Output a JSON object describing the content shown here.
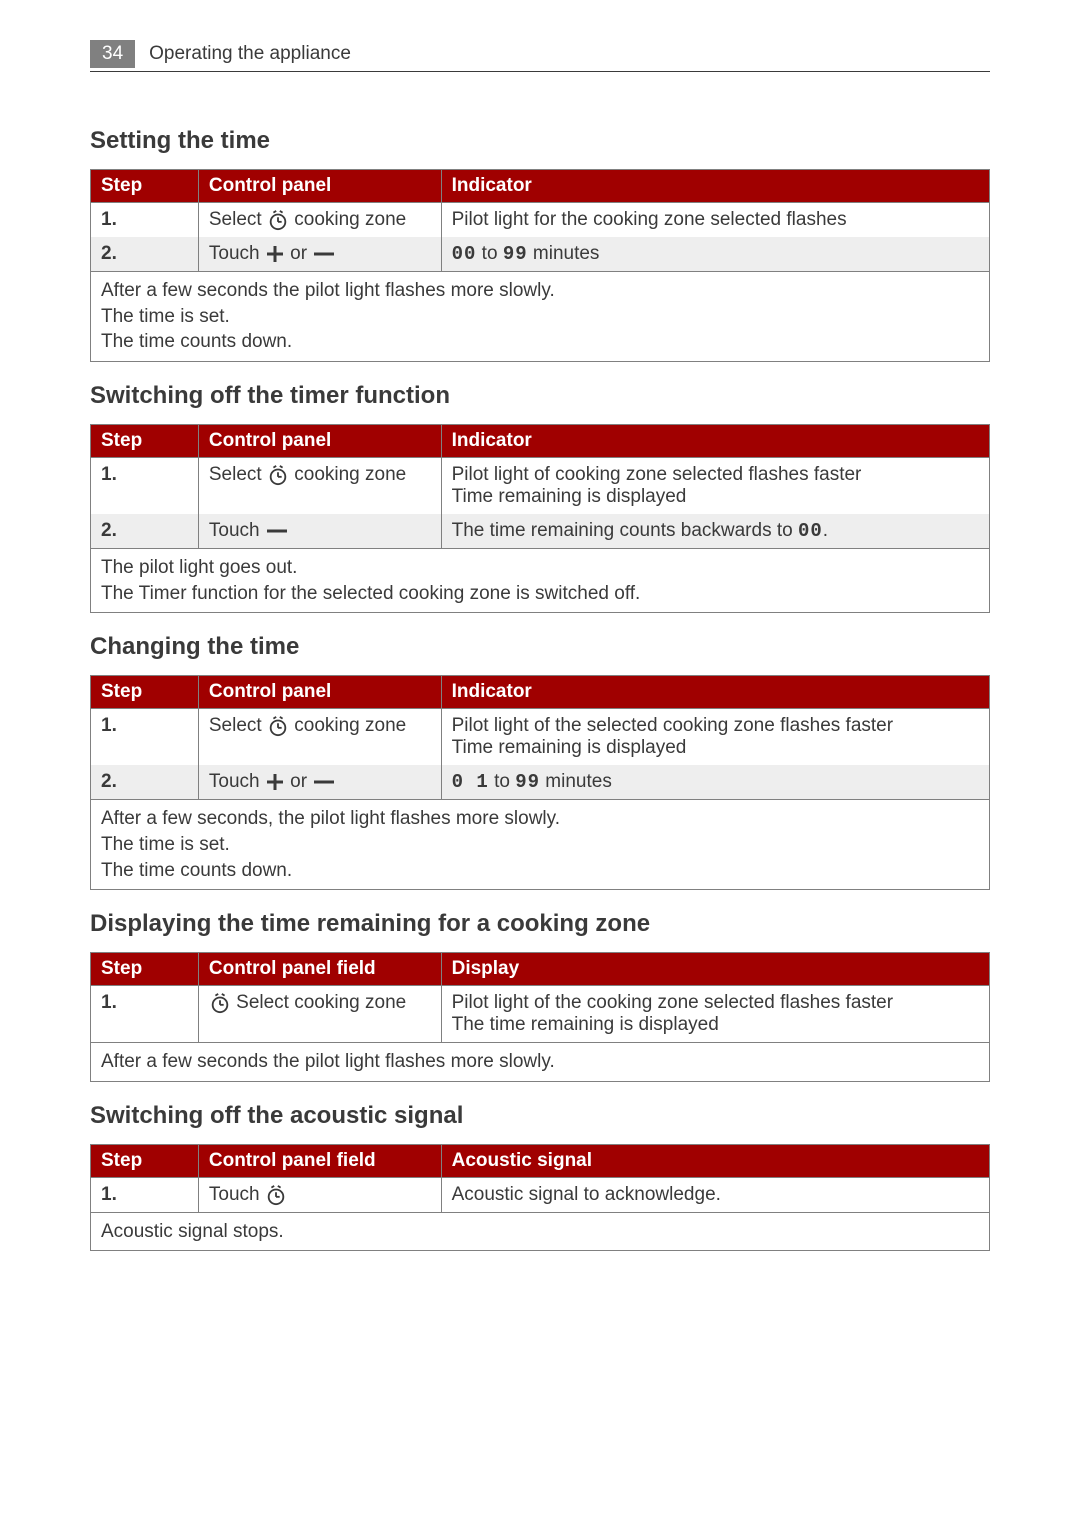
{
  "header": {
    "page_number": "34",
    "title": "Operating the appliance"
  },
  "colors": {
    "header_red": "#a00000",
    "grey_box": "#808080",
    "text": "#3a3a3a",
    "alt_row": "#eeeeee",
    "white": "#ffffff",
    "border": "#808080"
  },
  "sections": [
    {
      "heading": "Setting the time",
      "columns": [
        "Step",
        "Control panel",
        "Indicator"
      ],
      "rows": [
        {
          "step": "1.",
          "panel_pre": "Select ",
          "panel_icon": "clock",
          "panel_post": "  cooking zone",
          "indicator": "Pilot light for the cooking zone selected flashes"
        },
        {
          "step": "2.",
          "panel_pre": "Touch ",
          "panel_icon": "plus",
          "panel_mid": " or ",
          "panel_icon2": "minus",
          "panel_post": "",
          "indicator_digit1": "00",
          "indicator_mid": " to ",
          "indicator_digit2": "99",
          "indicator_post": "  minutes"
        }
      ],
      "footer": "After a few seconds the pilot light flashes more slowly.\nThe time is set.\nThe time counts down."
    },
    {
      "heading": "Switching off the timer function",
      "columns": [
        "Step",
        "Control panel",
        "Indicator"
      ],
      "rows": [
        {
          "step": "1.",
          "panel_pre": "Select ",
          "panel_icon": "clock",
          "panel_post": "  cooking zone",
          "indicator": "Pilot light of cooking zone selected flashes faster\nTime remaining is displayed"
        },
        {
          "step": "2.",
          "panel_pre": "Touch ",
          "panel_icon": "minus",
          "panel_post": "",
          "indicator_pre": "The time remaining counts backwards to ",
          "indicator_digit1": "00",
          "indicator_post": "."
        }
      ],
      "footer": "The pilot light goes out.\nThe Timer function for the selected cooking zone is switched off."
    },
    {
      "heading": "Changing the time",
      "columns": [
        "Step",
        "Control panel",
        "Indicator"
      ],
      "rows": [
        {
          "step": "1.",
          "panel_pre": "Select ",
          "panel_icon": "clock",
          "panel_post": "  cooking zone",
          "indicator": "Pilot light of the selected cooking zone flashes faster\nTime remaining is displayed"
        },
        {
          "step": "2.",
          "panel_pre": "Touch ",
          "panel_icon": "plus",
          "panel_mid": " or ",
          "panel_icon2": "minus",
          "panel_post": "",
          "indicator_digit1": "0 1",
          "indicator_mid": " to ",
          "indicator_digit2": "99",
          "indicator_post": "  minutes"
        }
      ],
      "footer": "After a few seconds, the pilot light flashes more slowly.\nThe time is set.\nThe time counts down."
    },
    {
      "heading": "Displaying the time remaining for a cooking zone",
      "columns": [
        "Step",
        "Control panel field",
        "Display"
      ],
      "rows": [
        {
          "step": "1.",
          "panel_icon_first": "clock",
          "panel_post": "  Select cooking zone",
          "indicator": "Pilot light of the cooking zone selected flashes faster\nThe time remaining is displayed"
        }
      ],
      "footer": "After a few seconds the pilot light flashes more slowly."
    },
    {
      "heading": "Switching off the acoustic signal",
      "columns": [
        "Step",
        "Control panel field",
        "Acoustic signal"
      ],
      "rows": [
        {
          "step": "1.",
          "panel_pre": "Touch ",
          "panel_icon": "clock",
          "panel_post": "",
          "indicator": "Acoustic signal to acknowledge."
        }
      ],
      "footer": "Acoustic signal stops."
    }
  ]
}
